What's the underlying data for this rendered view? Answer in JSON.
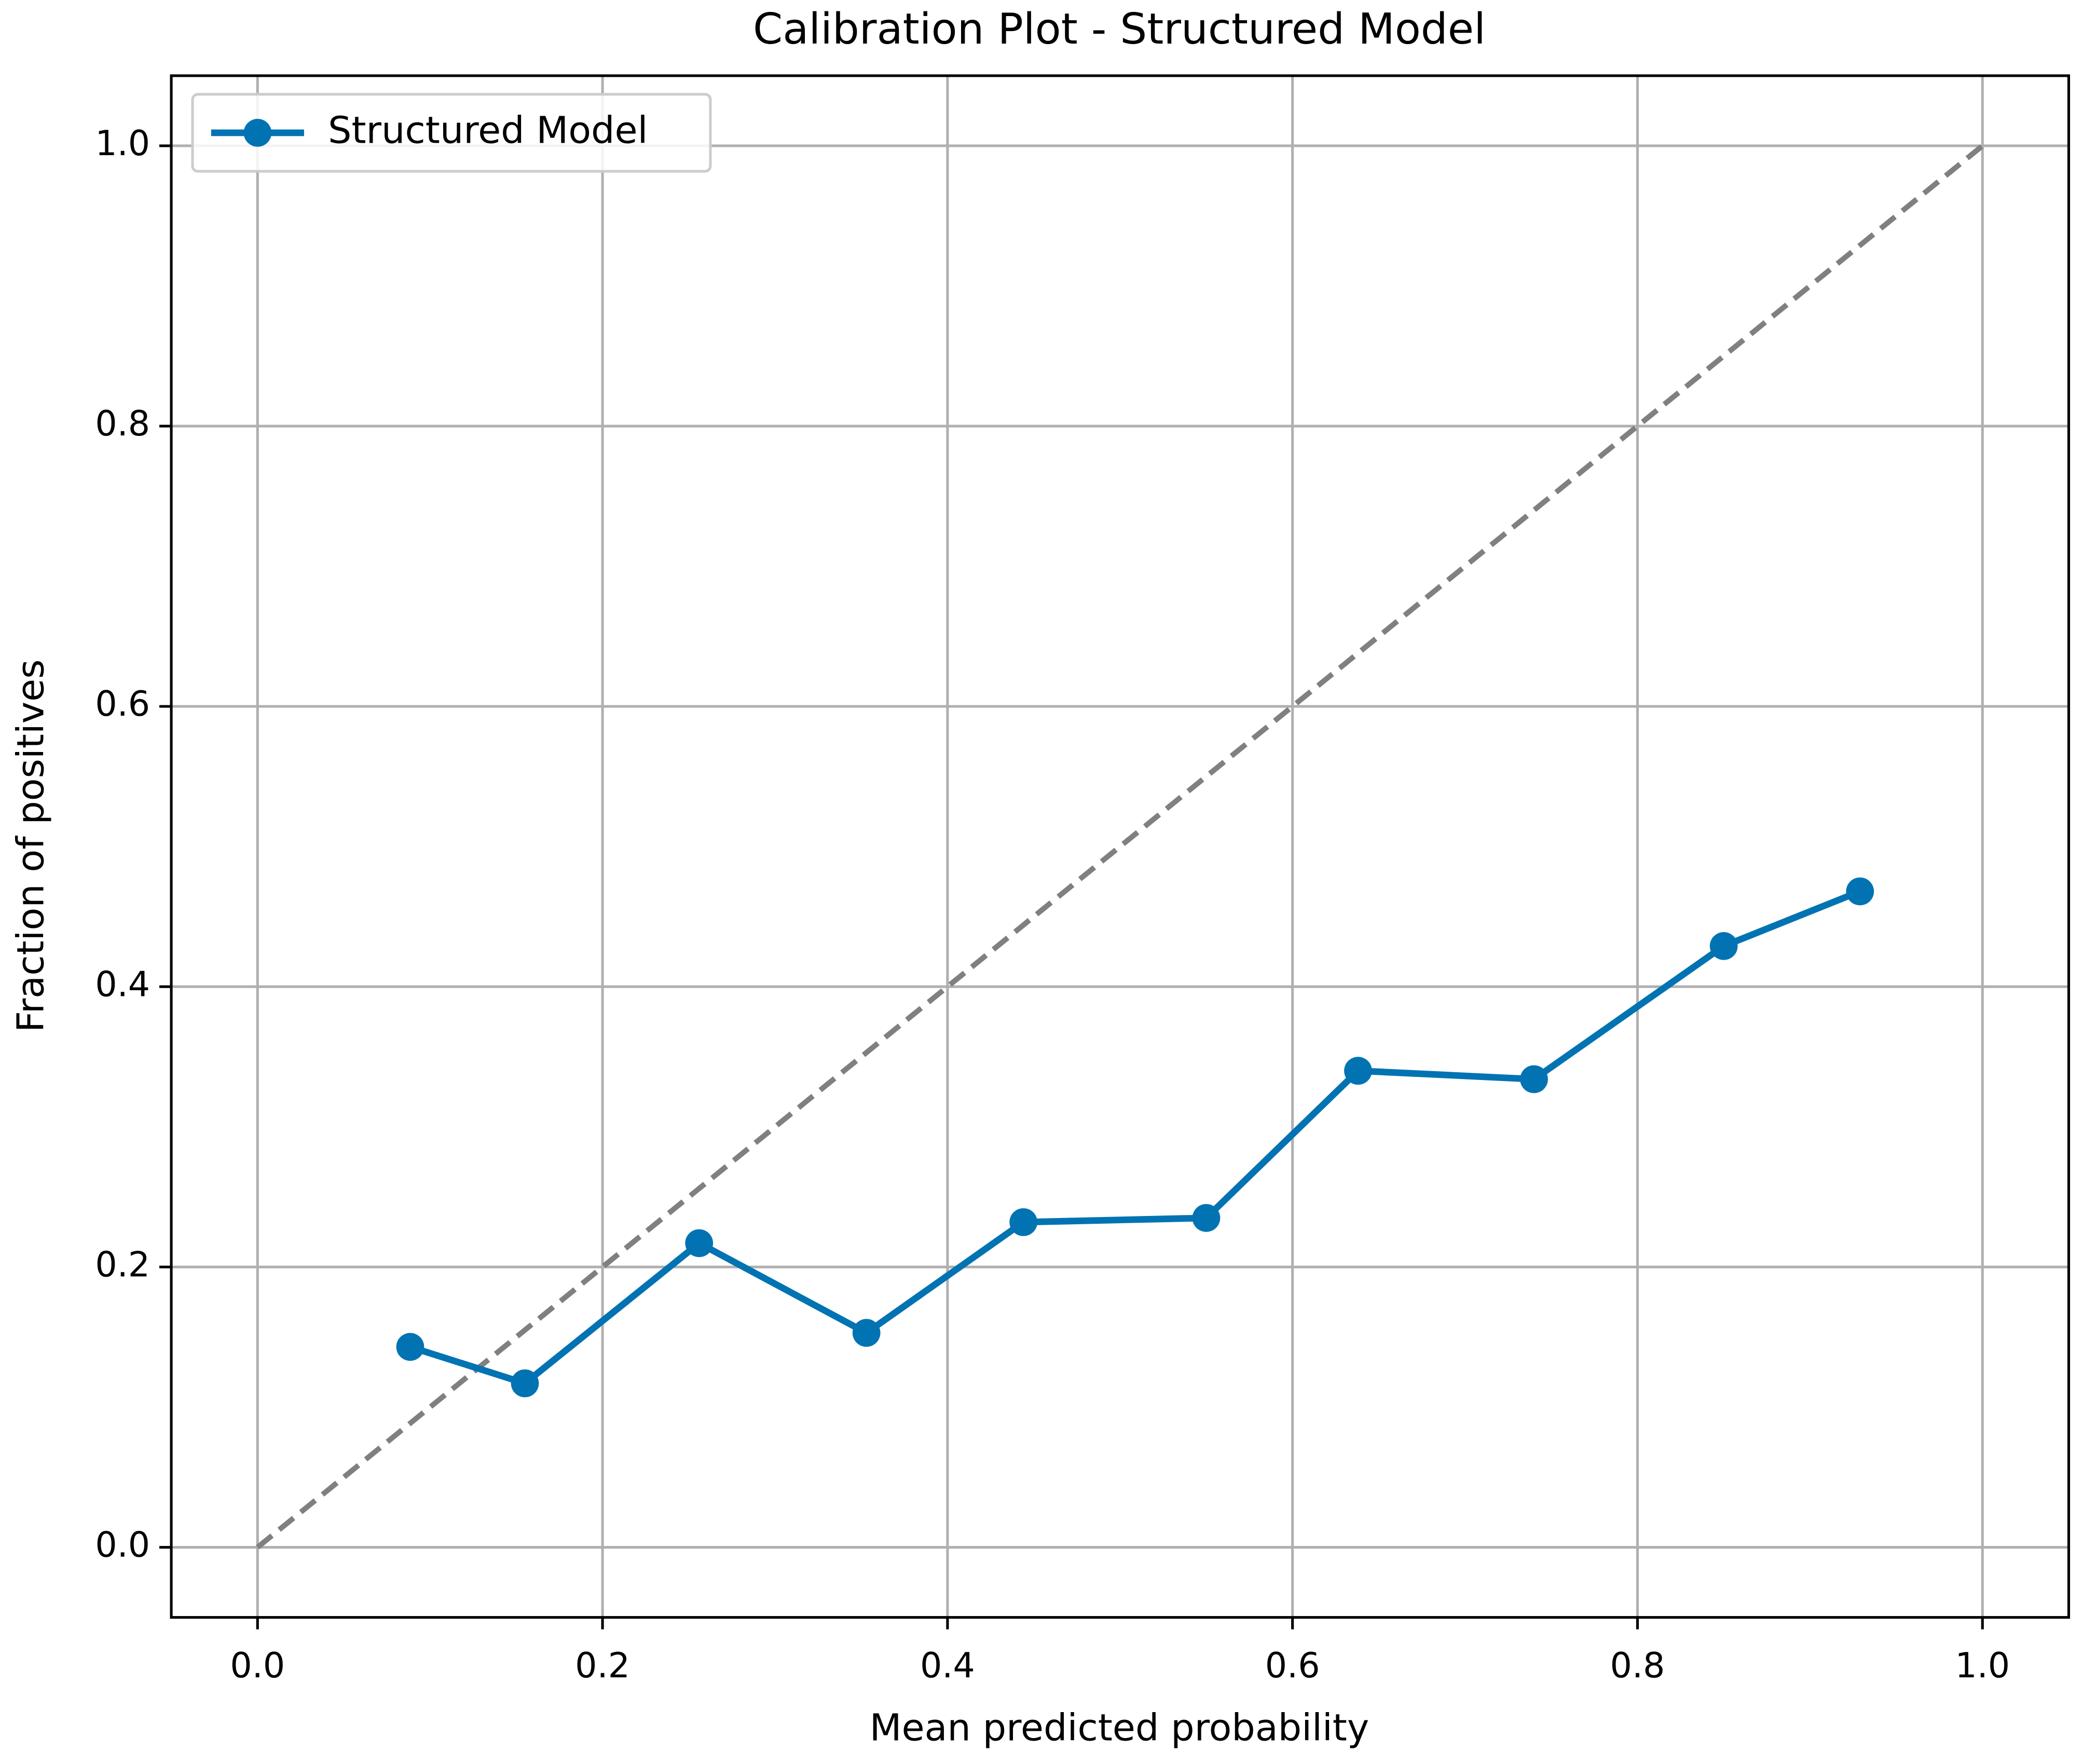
{
  "chart_data": {
    "type": "line",
    "title": "Calibration Plot - Structured Model",
    "x_label": "Mean predicted probability",
    "y_label": "Fraction of positives",
    "x": [
      0.0885,
      0.155,
      0.256,
      0.353,
      0.444,
      0.55,
      0.638,
      0.74,
      0.85,
      0.929
    ],
    "series": [
      {
        "name": "Structured Model",
        "color": "#0173b2",
        "values": [
          0.143,
          0.117,
          0.217,
          0.153,
          0.232,
          0.235,
          0.34,
          0.334,
          0.429,
          0.468
        ]
      }
    ],
    "reference_line": {
      "x": [
        0,
        1
      ],
      "y": [
        0,
        1
      ],
      "color": "#808080",
      "style": "dashed"
    },
    "xlim": [
      -0.05,
      1.05
    ],
    "ylim": [
      -0.05,
      1.05
    ],
    "xticks": [
      {
        "value": 0,
        "label": "0.0"
      },
      0.2,
      0.4,
      0.6,
      0.8,
      {
        "value": 1,
        "label": "1.0"
      }
    ],
    "yticks": [
      {
        "value": 0,
        "label": "0.0"
      },
      0.2,
      0.4,
      0.6,
      0.8,
      {
        "value": 1,
        "label": "1.0"
      }
    ],
    "grid": true,
    "legend": "upper left"
  }
}
